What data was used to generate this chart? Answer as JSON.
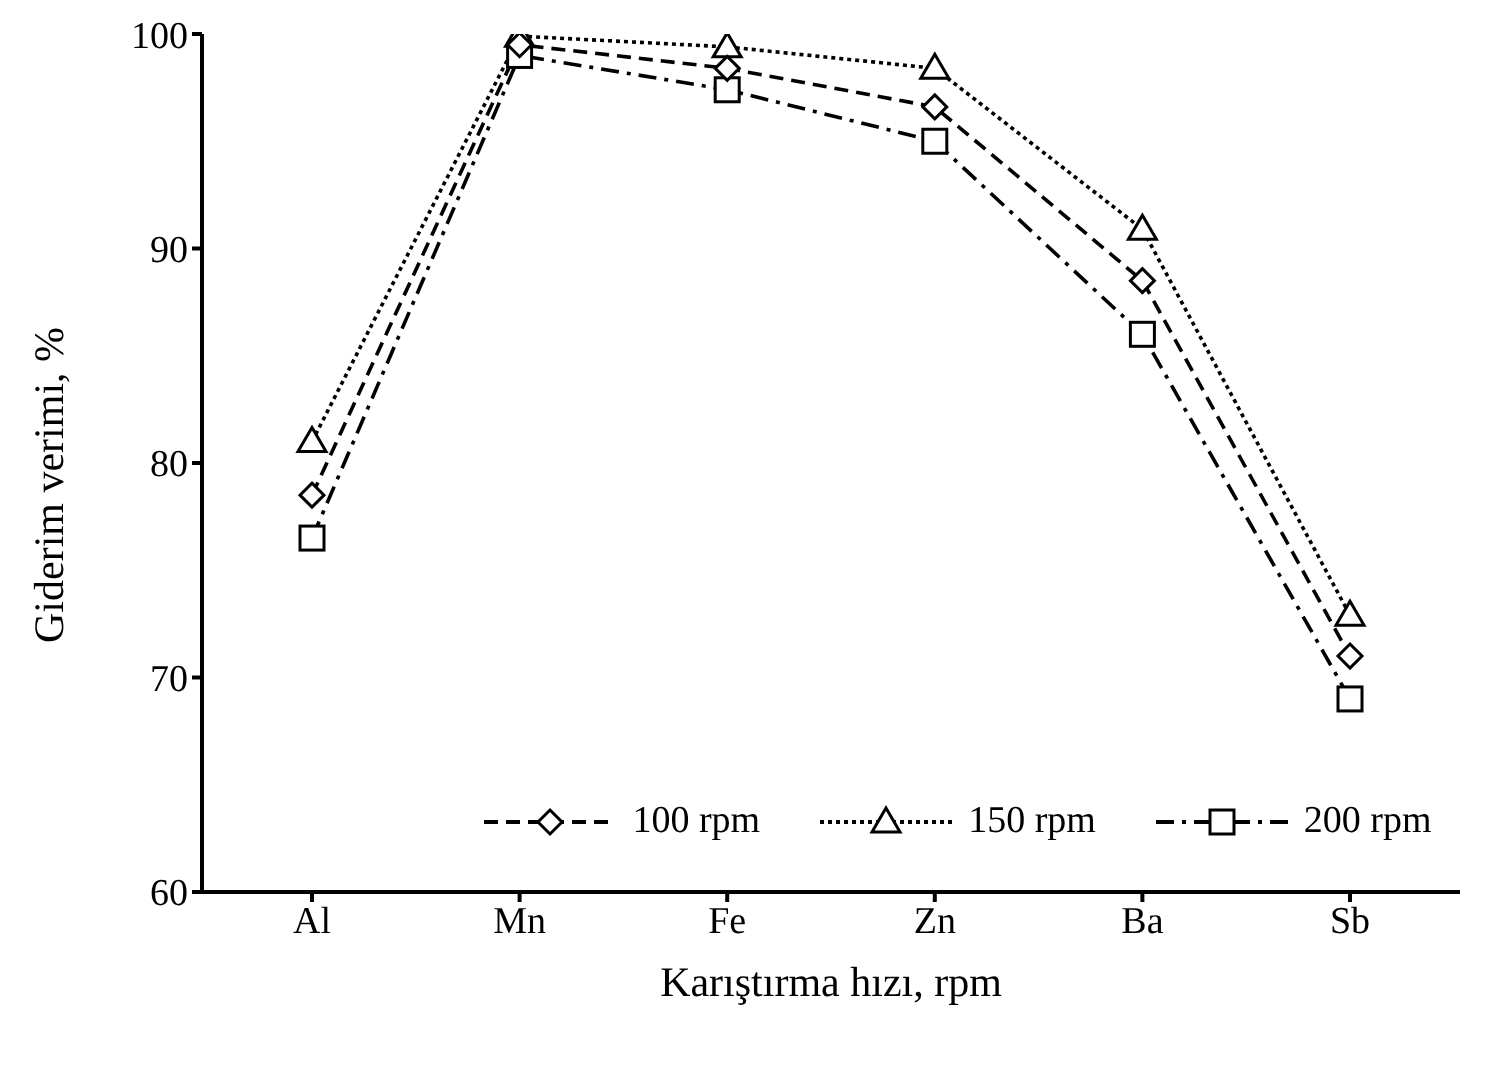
{
  "chart_data": {
    "type": "line",
    "xlabel": "Karıştırma hızı, rpm",
    "ylabel": "Giderim verimi, %",
    "categories": [
      "Al",
      "Mn",
      "Fe",
      "Zn",
      "Ba",
      "Sb"
    ],
    "ylim": [
      60,
      100
    ],
    "yticks": [
      60,
      70,
      80,
      90,
      100
    ],
    "grid": false,
    "legend": "bottom",
    "series": [
      {
        "name": "100 rpm",
        "color": "#000000",
        "marker": "diamond",
        "line_style": "dashed",
        "values": [
          78.5,
          99.5,
          98.4,
          96.6,
          88.5,
          71.0
        ]
      },
      {
        "name": "150 rpm",
        "color": "#000000",
        "marker": "triangle",
        "line_style": "dotted",
        "values": [
          81.0,
          99.9,
          99.4,
          98.4,
          90.9,
          72.9
        ]
      },
      {
        "name": "200 rpm",
        "color": "#000000",
        "marker": "square",
        "line_style": "dashdot",
        "values": [
          76.5,
          99.0,
          97.4,
          95.0,
          86.0,
          69.0
        ]
      }
    ]
  }
}
